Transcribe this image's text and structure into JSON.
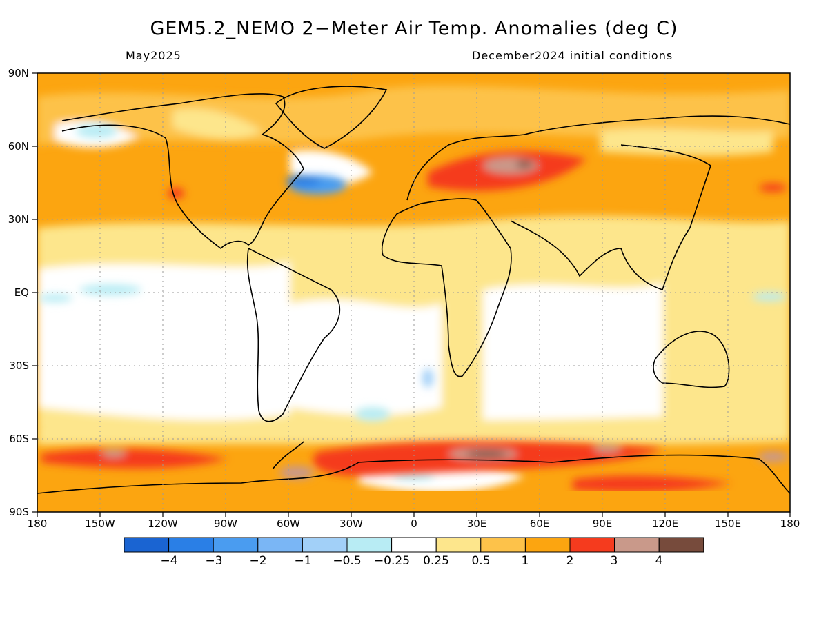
{
  "title": "GEM5.2_NEMO 2−Meter Air Temp. Anomalies (deg C)",
  "valid_month": "May2025",
  "init_conditions": "December2024 initial conditions",
  "map": {
    "lat_ticks": [
      "90N",
      "60N",
      "30N",
      "EQ",
      "30S",
      "60S",
      "90S"
    ],
    "lon_ticks": [
      "180",
      "150W",
      "120W",
      "90W",
      "60W",
      "30W",
      "0",
      "30E",
      "60E",
      "90E",
      "120E",
      "150E",
      "180"
    ]
  },
  "colorbar": {
    "colors": [
      "#1a64d2",
      "#2a7fe6",
      "#4a9cf0",
      "#7ab6f5",
      "#a2d0f8",
      "#b8ecf4",
      "#ffffff",
      "#fde68c",
      "#fdc24a",
      "#fca510",
      "#f53b1e",
      "#c9998a",
      "#774b3c"
    ],
    "labels": [
      "−4",
      "−3",
      "−2",
      "−1",
      "−0.5",
      "−0.25",
      "0.25",
      "0.5",
      "1",
      "2",
      "3",
      "4"
    ]
  }
}
